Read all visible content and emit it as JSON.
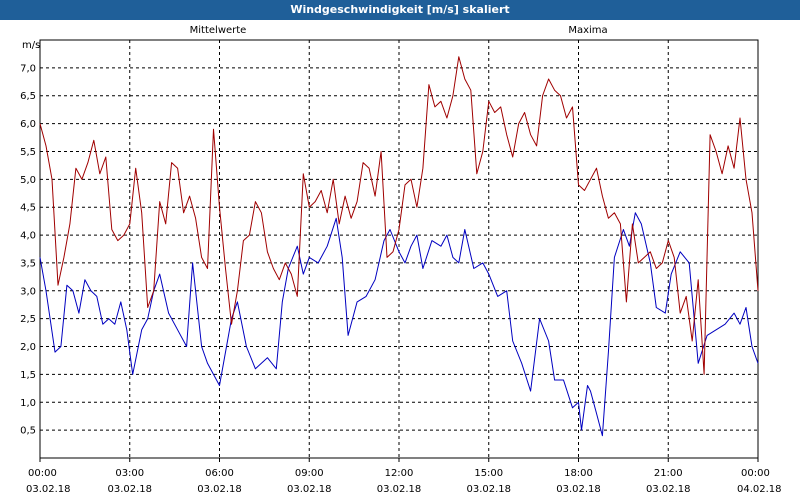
{
  "window": {
    "title": "Windgeschwindigkeit [m/s] skaliert"
  },
  "colors": {
    "titlebar": "#1f5f99",
    "series_mean": "#0000c0",
    "series_max": "#a00000",
    "grid": "#000000"
  },
  "chart_data": {
    "type": "line",
    "title": "Windgeschwindigkeit [m/s] skaliert",
    "ylabel": "m/s",
    "ylim": [
      0,
      7.5
    ],
    "yticks": [
      0.5,
      1.0,
      1.5,
      2.0,
      2.5,
      3.0,
      3.5,
      4.0,
      4.5,
      5.0,
      5.5,
      6.0,
      6.5,
      7.0
    ],
    "ytick_labels": [
      "0,5",
      "1,0",
      "1,5",
      "2,0",
      "2,5",
      "3,0",
      "3,5",
      "4,0",
      "4,5",
      "5,0",
      "5,5",
      "6,0",
      "6,5",
      "7,0"
    ],
    "xlim": [
      0,
      24
    ],
    "xticks": [
      0,
      3,
      6,
      9,
      12,
      15,
      18,
      21,
      24
    ],
    "xtick_labels": [
      [
        "00:00",
        "03.02.18"
      ],
      [
        "03:00",
        "03.02.18"
      ],
      [
        "06:00",
        "03.02.18"
      ],
      [
        "09:00",
        "03.02.18"
      ],
      [
        "12:00",
        "03.02.18"
      ],
      [
        "15:00",
        "03.02.18"
      ],
      [
        "18:00",
        "03.02.18"
      ],
      [
        "21:00",
        "03.02.18"
      ],
      [
        "00:00",
        "04.02.18"
      ]
    ],
    "grid": true,
    "series": [
      {
        "name": "Mittelwerte",
        "points": [
          [
            0.0,
            3.6
          ],
          [
            0.2,
            3.0
          ],
          [
            0.5,
            1.9
          ],
          [
            0.7,
            2.0
          ],
          [
            0.9,
            3.1
          ],
          [
            1.1,
            3.0
          ],
          [
            1.3,
            2.6
          ],
          [
            1.5,
            3.2
          ],
          [
            1.7,
            3.0
          ],
          [
            1.9,
            2.9
          ],
          [
            2.1,
            2.4
          ],
          [
            2.3,
            2.5
          ],
          [
            2.5,
            2.4
          ],
          [
            2.7,
            2.8
          ],
          [
            2.9,
            2.3
          ],
          [
            3.1,
            1.5
          ],
          [
            3.4,
            2.3
          ],
          [
            3.6,
            2.5
          ],
          [
            3.8,
            3.0
          ],
          [
            4.0,
            3.3
          ],
          [
            4.3,
            2.6
          ],
          [
            4.6,
            2.3
          ],
          [
            4.9,
            2.0
          ],
          [
            5.1,
            3.5
          ],
          [
            5.4,
            2.0
          ],
          [
            5.6,
            1.7
          ],
          [
            5.8,
            1.5
          ],
          [
            6.0,
            1.3
          ],
          [
            6.2,
            1.9
          ],
          [
            6.4,
            2.5
          ],
          [
            6.6,
            2.8
          ],
          [
            6.9,
            2.0
          ],
          [
            7.2,
            1.6
          ],
          [
            7.6,
            1.8
          ],
          [
            7.9,
            1.6
          ],
          [
            8.1,
            2.8
          ],
          [
            8.3,
            3.4
          ],
          [
            8.6,
            3.8
          ],
          [
            8.8,
            3.3
          ],
          [
            9.0,
            3.6
          ],
          [
            9.3,
            3.5
          ],
          [
            9.6,
            3.8
          ],
          [
            9.9,
            4.3
          ],
          [
            10.1,
            3.6
          ],
          [
            10.3,
            2.2
          ],
          [
            10.6,
            2.8
          ],
          [
            10.9,
            2.9
          ],
          [
            11.2,
            3.2
          ],
          [
            11.5,
            3.9
          ],
          [
            11.7,
            4.1
          ],
          [
            12.0,
            3.7
          ],
          [
            12.2,
            3.5
          ],
          [
            12.4,
            3.8
          ],
          [
            12.6,
            4.0
          ],
          [
            12.8,
            3.4
          ],
          [
            13.1,
            3.9
          ],
          [
            13.4,
            3.8
          ],
          [
            13.6,
            4.0
          ],
          [
            13.8,
            3.6
          ],
          [
            14.0,
            3.5
          ],
          [
            14.2,
            4.1
          ],
          [
            14.5,
            3.4
          ],
          [
            14.8,
            3.5
          ],
          [
            15.0,
            3.3
          ],
          [
            15.3,
            2.9
          ],
          [
            15.6,
            3.0
          ],
          [
            15.8,
            2.1
          ],
          [
            16.1,
            1.7
          ],
          [
            16.4,
            1.2
          ],
          [
            16.7,
            2.5
          ],
          [
            17.0,
            2.1
          ],
          [
            17.2,
            1.4
          ],
          [
            17.5,
            1.4
          ],
          [
            17.8,
            0.9
          ],
          [
            18.0,
            1.0
          ],
          [
            18.1,
            0.5
          ],
          [
            18.3,
            1.3
          ],
          [
            18.4,
            1.2
          ],
          [
            18.6,
            0.8
          ],
          [
            18.8,
            0.4
          ],
          [
            19.0,
            1.9
          ],
          [
            19.2,
            3.6
          ],
          [
            19.5,
            4.1
          ],
          [
            19.7,
            3.8
          ],
          [
            19.9,
            4.4
          ],
          [
            20.1,
            4.2
          ],
          [
            20.4,
            3.5
          ],
          [
            20.6,
            2.7
          ],
          [
            20.9,
            2.6
          ],
          [
            21.1,
            3.3
          ],
          [
            21.4,
            3.7
          ],
          [
            21.7,
            3.5
          ],
          [
            22.0,
            1.7
          ],
          [
            22.3,
            2.2
          ],
          [
            22.6,
            2.3
          ],
          [
            22.9,
            2.4
          ],
          [
            23.2,
            2.6
          ],
          [
            23.4,
            2.4
          ],
          [
            23.6,
            2.7
          ],
          [
            23.8,
            2.0
          ],
          [
            24.0,
            1.7
          ]
        ]
      },
      {
        "name": "Maxima",
        "points": [
          [
            0.0,
            6.0
          ],
          [
            0.2,
            5.6
          ],
          [
            0.4,
            5.0
          ],
          [
            0.6,
            3.1
          ],
          [
            0.8,
            3.6
          ],
          [
            1.0,
            4.2
          ],
          [
            1.2,
            5.2
          ],
          [
            1.4,
            5.0
          ],
          [
            1.6,
            5.3
          ],
          [
            1.8,
            5.7
          ],
          [
            2.0,
            5.1
          ],
          [
            2.2,
            5.4
          ],
          [
            2.4,
            4.1
          ],
          [
            2.6,
            3.9
          ],
          [
            2.8,
            4.0
          ],
          [
            3.0,
            4.2
          ],
          [
            3.2,
            5.2
          ],
          [
            3.4,
            4.4
          ],
          [
            3.6,
            2.7
          ],
          [
            3.8,
            3.0
          ],
          [
            4.0,
            4.6
          ],
          [
            4.2,
            4.2
          ],
          [
            4.4,
            5.3
          ],
          [
            4.6,
            5.2
          ],
          [
            4.8,
            4.4
          ],
          [
            5.0,
            4.7
          ],
          [
            5.2,
            4.3
          ],
          [
            5.4,
            3.6
          ],
          [
            5.6,
            3.4
          ],
          [
            5.8,
            5.9
          ],
          [
            6.0,
            4.5
          ],
          [
            6.2,
            3.4
          ],
          [
            6.4,
            2.4
          ],
          [
            6.6,
            3.0
          ],
          [
            6.8,
            3.9
          ],
          [
            7.0,
            4.0
          ],
          [
            7.2,
            4.6
          ],
          [
            7.4,
            4.4
          ],
          [
            7.6,
            3.7
          ],
          [
            7.8,
            3.4
          ],
          [
            8.0,
            3.2
          ],
          [
            8.2,
            3.5
          ],
          [
            8.4,
            3.3
          ],
          [
            8.6,
            2.9
          ],
          [
            8.8,
            5.1
          ],
          [
            9.0,
            4.5
          ],
          [
            9.2,
            4.6
          ],
          [
            9.4,
            4.8
          ],
          [
            9.6,
            4.4
          ],
          [
            9.8,
            5.0
          ],
          [
            10.0,
            4.2
          ],
          [
            10.2,
            4.7
          ],
          [
            10.4,
            4.3
          ],
          [
            10.6,
            4.6
          ],
          [
            10.8,
            5.3
          ],
          [
            11.0,
            5.2
          ],
          [
            11.2,
            4.7
          ],
          [
            11.4,
            5.5
          ],
          [
            11.6,
            3.6
          ],
          [
            11.8,
            3.7
          ],
          [
            12.0,
            4.1
          ],
          [
            12.2,
            4.9
          ],
          [
            12.4,
            5.0
          ],
          [
            12.6,
            4.5
          ],
          [
            12.8,
            5.2
          ],
          [
            13.0,
            6.7
          ],
          [
            13.2,
            6.3
          ],
          [
            13.4,
            6.4
          ],
          [
            13.6,
            6.1
          ],
          [
            13.8,
            6.5
          ],
          [
            14.0,
            7.2
          ],
          [
            14.2,
            6.8
          ],
          [
            14.4,
            6.6
          ],
          [
            14.6,
            5.1
          ],
          [
            14.8,
            5.5
          ],
          [
            15.0,
            6.4
          ],
          [
            15.2,
            6.2
          ],
          [
            15.4,
            6.3
          ],
          [
            15.6,
            5.8
          ],
          [
            15.8,
            5.4
          ],
          [
            16.0,
            6.0
          ],
          [
            16.2,
            6.2
          ],
          [
            16.4,
            5.8
          ],
          [
            16.6,
            5.6
          ],
          [
            16.8,
            6.5
          ],
          [
            17.0,
            6.8
          ],
          [
            17.2,
            6.6
          ],
          [
            17.4,
            6.5
          ],
          [
            17.6,
            6.1
          ],
          [
            17.8,
            6.3
          ],
          [
            18.0,
            4.9
          ],
          [
            18.2,
            4.8
          ],
          [
            18.4,
            5.0
          ],
          [
            18.6,
            5.2
          ],
          [
            18.8,
            4.7
          ],
          [
            19.0,
            4.3
          ],
          [
            19.2,
            4.4
          ],
          [
            19.4,
            4.2
          ],
          [
            19.6,
            2.8
          ],
          [
            19.8,
            4.2
          ],
          [
            20.0,
            3.5
          ],
          [
            20.2,
            3.6
          ],
          [
            20.4,
            3.7
          ],
          [
            20.6,
            3.4
          ],
          [
            20.8,
            3.5
          ],
          [
            21.0,
            3.9
          ],
          [
            21.2,
            3.6
          ],
          [
            21.4,
            2.6
          ],
          [
            21.6,
            2.9
          ],
          [
            21.8,
            2.1
          ],
          [
            22.0,
            3.2
          ],
          [
            22.2,
            1.5
          ],
          [
            22.4,
            5.8
          ],
          [
            22.6,
            5.5
          ],
          [
            22.8,
            5.1
          ],
          [
            23.0,
            5.6
          ],
          [
            23.2,
            5.2
          ],
          [
            23.4,
            6.1
          ],
          [
            23.6,
            5.0
          ],
          [
            23.8,
            4.4
          ],
          [
            24.0,
            3.0
          ]
        ]
      }
    ]
  }
}
